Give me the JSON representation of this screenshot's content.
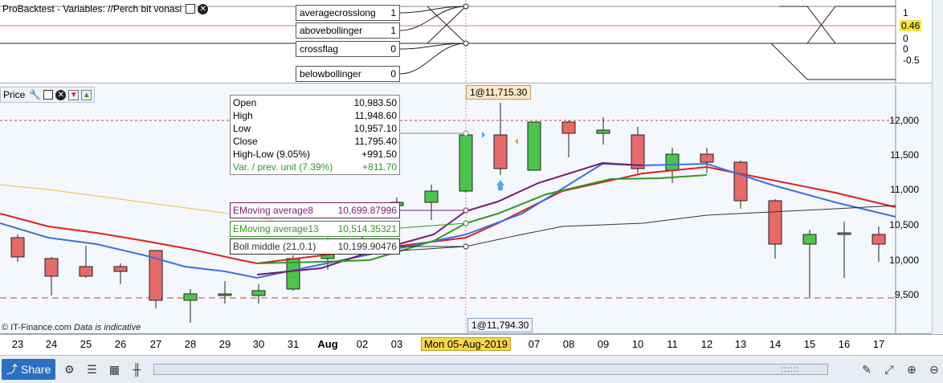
{
  "var_pane": {
    "title": "ProBacktest - Variables: //Perch bit vonasi",
    "variables": [
      {
        "name": "averagecrosslong",
        "value": "1"
      },
      {
        "name": "abovebollinger",
        "value": "1"
      },
      {
        "name": "crossflag",
        "value": "0"
      },
      {
        "name": "belowbollinger",
        "value": "0"
      }
    ],
    "axis_labels": [
      "1",
      "0.46",
      "0",
      "0",
      "-0.5"
    ]
  },
  "price_pane": {
    "title": "Price",
    "ohlc": [
      {
        "label": "Open",
        "value": "10,983.50"
      },
      {
        "label": "High",
        "value": "11,948.60"
      },
      {
        "label": "Low",
        "value": "10,957.10"
      },
      {
        "label": "Close",
        "value": "11,795.40"
      },
      {
        "label": "High-Low (9.05%)",
        "value": "+991.50"
      },
      {
        "label": "Var. / prev. unit (7.39%)",
        "value": "+811.70"
      }
    ],
    "indicators": [
      {
        "label": "EMoving average8",
        "value": "10,699.87996",
        "color": "#7a1a6e"
      },
      {
        "label": "EMoving average13",
        "value": "10,514.35321",
        "color": "#2f9a1e"
      },
      {
        "label": "Boll middle (21,0.1)",
        "value": "10,199.90476",
        "color": "#333333"
      }
    ],
    "top_tag": "1@11,715.30",
    "bottom_tag": "1@11,794.30",
    "y_ticks": [
      "12,000",
      "11,500",
      "11,000",
      "10,500",
      "10,000",
      "9,500"
    ],
    "copyright": "© IT-Finance.com",
    "disclaimer": "Data is indicative"
  },
  "x_axis": {
    "labels": [
      "23",
      "24",
      "25",
      "26",
      "27",
      "28",
      "29",
      "30",
      "31",
      "Aug",
      "02",
      "03",
      "Mon 05-Aug-2019",
      "07",
      "08",
      "09",
      "10",
      "11",
      "12",
      "13",
      "14",
      "15",
      "16",
      "17"
    ]
  },
  "toolbar": {
    "share_label": "Share"
  },
  "colors": {
    "up": "#4cc44c",
    "down": "#e66a6a",
    "ema8": "#7a1a6e",
    "ema13": "#2f9a1e",
    "boll": "#333333",
    "red_ma": "#e02020",
    "blue_ma": "#3d6fe0",
    "orange_ma": "#f0c040"
  }
}
